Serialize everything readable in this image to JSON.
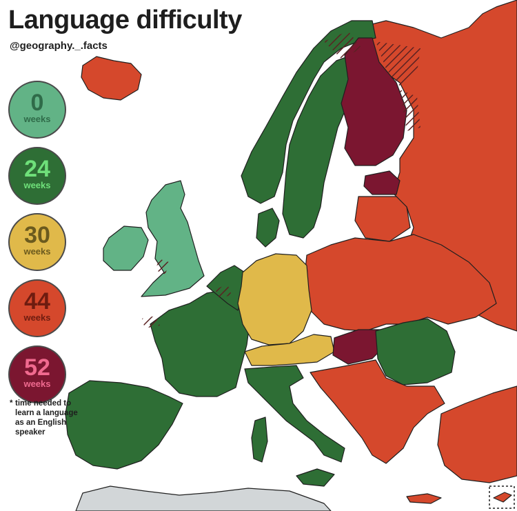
{
  "header": {
    "title": "Language difficulty",
    "handle": "@geography._.facts"
  },
  "legend": {
    "items": [
      {
        "value": "0",
        "unit": "weeks",
        "fill": "#62b386",
        "text_color": "#2f6b49"
      },
      {
        "value": "24",
        "unit": "weeks",
        "fill": "#2e6e35",
        "text_color": "#6fe07a"
      },
      {
        "value": "30",
        "unit": "weeks",
        "fill": "#e0b94a",
        "text_color": "#6b5a1e"
      },
      {
        "value": "44",
        "unit": "weeks",
        "fill": "#d5482c",
        "text_color": "#6e1c10"
      },
      {
        "value": "52",
        "unit": "weeks",
        "fill": "#7b1630",
        "text_color": "#f06a8f"
      }
    ],
    "footnote_marker": "*",
    "footnote": "time needed to learn a language as an English speaker"
  },
  "colors": {
    "sea": "#ffffff",
    "border": "#1f1f1f",
    "non_europe": "#d2d6d8",
    "hatch": "#5a2222"
  },
  "regions": [
    {
      "name": "iceland",
      "category": "44"
    },
    {
      "name": "ireland",
      "category": "0"
    },
    {
      "name": "great-britain",
      "category": "0"
    },
    {
      "name": "norway",
      "category": "24"
    },
    {
      "name": "sweden",
      "category": "24"
    },
    {
      "name": "denmark",
      "category": "24"
    },
    {
      "name": "finland",
      "category": "52"
    },
    {
      "name": "estonia",
      "category": "52"
    },
    {
      "name": "russia",
      "category": "44"
    },
    {
      "name": "baltics-east",
      "category": "44"
    },
    {
      "name": "france",
      "category": "24"
    },
    {
      "name": "iberia",
      "category": "24"
    },
    {
      "name": "benelux",
      "category": "24"
    },
    {
      "name": "germany",
      "category": "30"
    },
    {
      "name": "switzerland-austria",
      "category": "30"
    },
    {
      "name": "italy",
      "category": "24"
    },
    {
      "name": "romania",
      "category": "24"
    },
    {
      "name": "hungary",
      "category": "52"
    },
    {
      "name": "central-east-europe",
      "category": "44"
    },
    {
      "name": "balkans",
      "category": "44"
    },
    {
      "name": "turkey",
      "category": "44"
    },
    {
      "name": "north-africa",
      "category": "other"
    }
  ]
}
